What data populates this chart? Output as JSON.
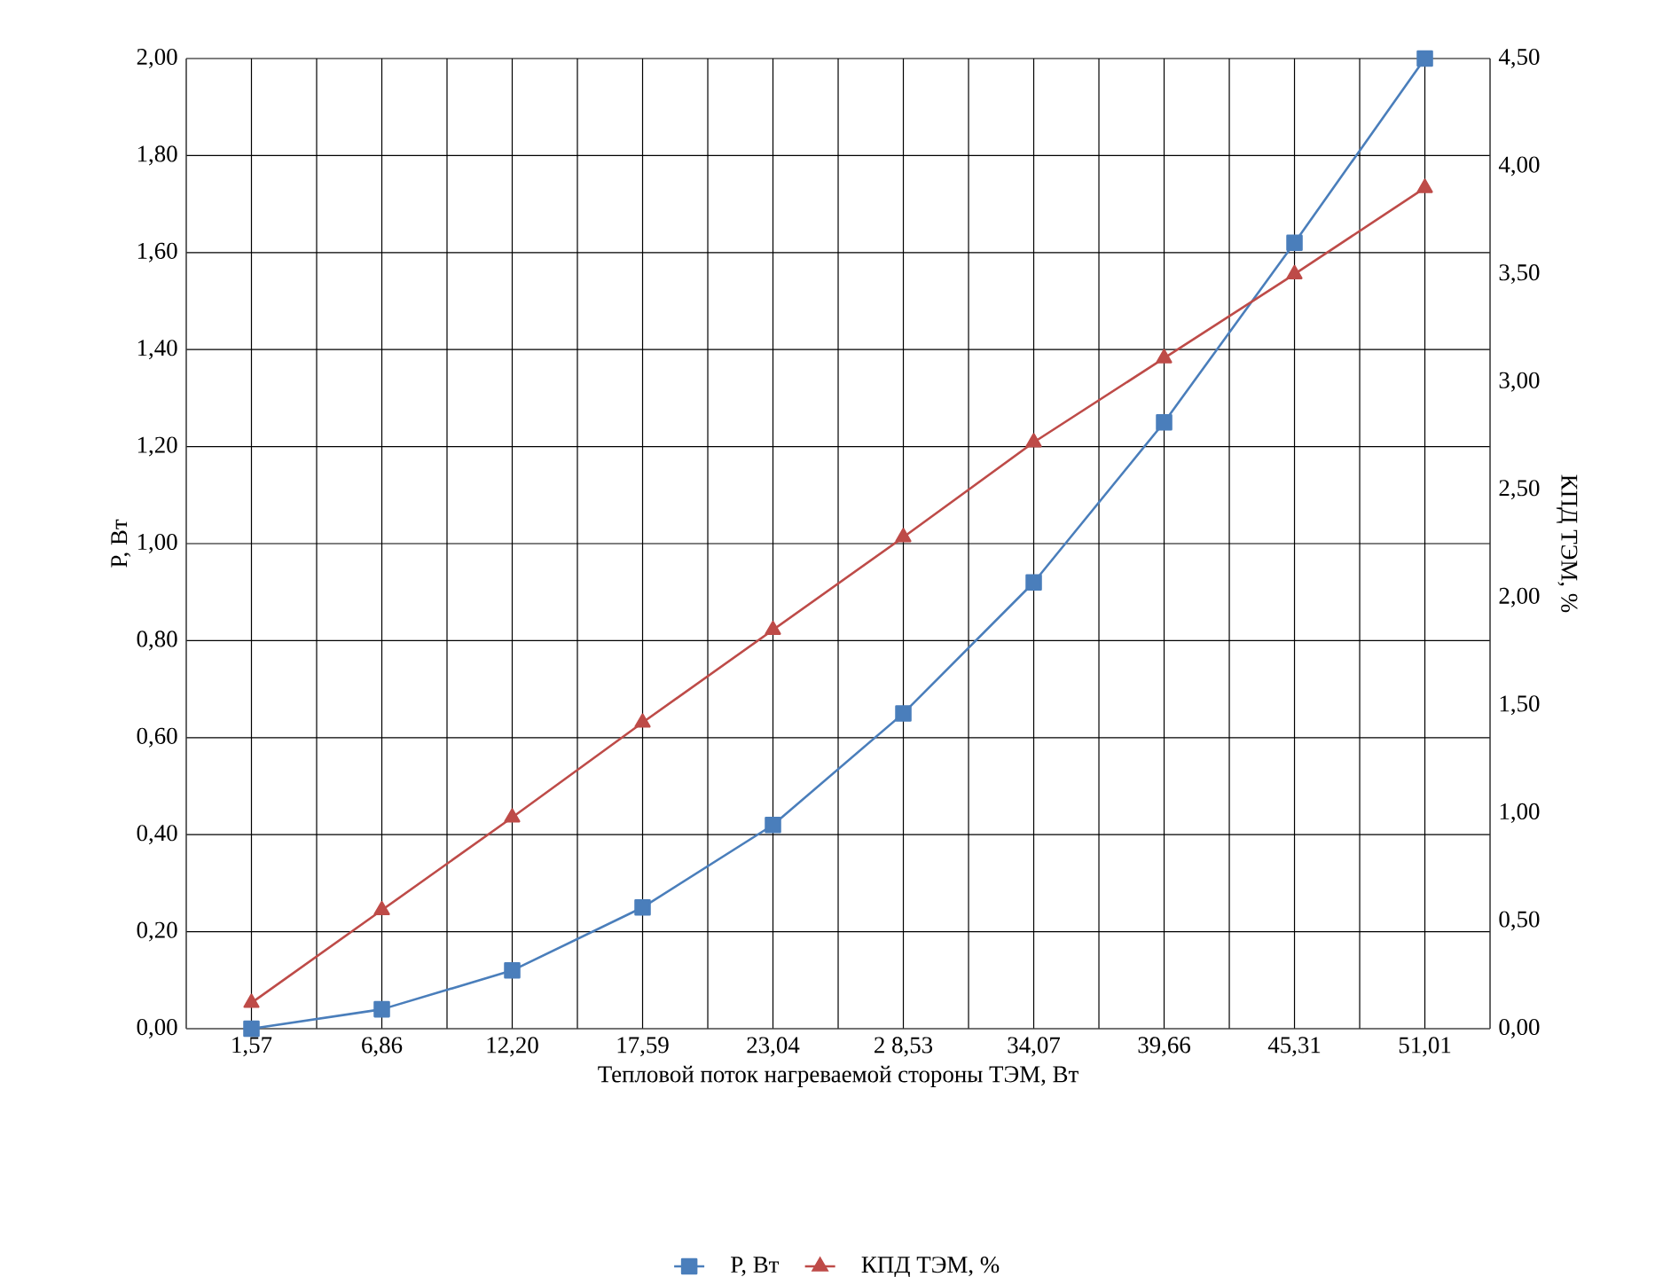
{
  "chart_data": {
    "type": "line",
    "xlabel": "Тепловой поток нагреваемой стороны ТЭМ, Вт",
    "ylabel": "P, Вт",
    "y2label": "КПД ТЭМ, %",
    "categories": [
      "1,57",
      "6,86",
      "12,20",
      "17,59",
      "23,04",
      "2 8,53",
      "34,07",
      "39,66",
      "45,31",
      "51,01"
    ],
    "series": [
      {
        "name": "P, Вт",
        "color": "#4a7ebb",
        "marker": "square",
        "values": [
          0.0,
          0.04,
          0.12,
          0.25,
          0.42,
          0.65,
          0.92,
          1.25,
          1.62,
          2.0
        ]
      },
      {
        "name": "КПД ТЭМ, %",
        "color": "#be4b48",
        "marker": "triangle",
        "axis": "y2",
        "values": [
          0.12,
          0.55,
          0.98,
          1.42,
          1.85,
          2.28,
          2.72,
          3.11,
          3.5,
          3.9
        ]
      }
    ],
    "ylim": [
      0,
      2.0
    ],
    "yticks": [
      {
        "value": 0,
        "label": "0,00"
      },
      {
        "value": 0.2,
        "label": "0,20"
      },
      {
        "value": 0.4,
        "label": "0,40"
      },
      {
        "value": 0.6,
        "label": "0,60"
      },
      {
        "value": 0.8,
        "label": "0,80"
      },
      {
        "value": 1.0,
        "label": "1,00"
      },
      {
        "value": 1.2,
        "label": "1,20"
      },
      {
        "value": 1.4,
        "label": "1,40"
      },
      {
        "value": 1.6,
        "label": "1,60"
      },
      {
        "value": 1.8,
        "label": "1,80"
      },
      {
        "value": 2.0,
        "label": "2,00"
      }
    ],
    "y2lim": [
      0,
      4.5
    ],
    "y2ticks": [
      {
        "value": 0,
        "label": "0,00"
      },
      {
        "value": 0.5,
        "label": "0,50"
      },
      {
        "value": 1.0,
        "label": "1,00"
      },
      {
        "value": 1.5,
        "label": "1,50"
      },
      {
        "value": 2.0,
        "label": "2,00"
      },
      {
        "value": 2.5,
        "label": "2,50"
      },
      {
        "value": 3.0,
        "label": "3,00"
      },
      {
        "value": 3.5,
        "label": "3,50"
      },
      {
        "value": 4.0,
        "label": "4,00"
      },
      {
        "value": 4.5,
        "label": "4,50"
      }
    ],
    "grid": true,
    "legend": "bottom",
    "line_style": "solid"
  }
}
